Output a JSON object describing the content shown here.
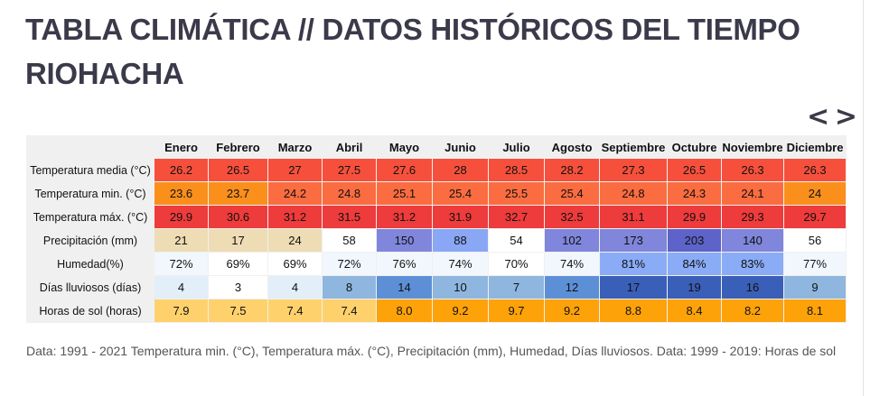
{
  "title_line1": "TABLA CLIMÁTICA // DATOS HISTÓRICOS DEL TIEMPO",
  "title_line2": "RIOHACHA",
  "nav": {
    "prev": "<",
    "next": ">"
  },
  "table": {
    "months": [
      "Enero",
      "Febrero",
      "Marzo",
      "Abril",
      "Mayo",
      "Junio",
      "Julio",
      "Agosto",
      "Septiembre",
      "Octubre",
      "Noviembre",
      "Diciembre"
    ],
    "rows": [
      {
        "label": "Temperatura media (°C)",
        "values": [
          "26.2",
          "26.5",
          "27",
          "27.5",
          "27.6",
          "28",
          "28.5",
          "28.2",
          "27.3",
          "26.5",
          "26.3",
          "26.3"
        ],
        "colors": [
          "#f6503c",
          "#f6503c",
          "#f6503c",
          "#f6503c",
          "#f6503c",
          "#f6503c",
          "#f6503c",
          "#f6503c",
          "#f6503c",
          "#f6503c",
          "#f6503c",
          "#f6503c"
        ]
      },
      {
        "label": "Temperatura min. (°C)",
        "values": [
          "23.6",
          "23.7",
          "24.2",
          "24.8",
          "25.1",
          "25.4",
          "25.5",
          "25.4",
          "24.8",
          "24.3",
          "24.1",
          "24"
        ],
        "colors": [
          "#fb8f1c",
          "#fb8f1c",
          "#fb6c40",
          "#fb6c40",
          "#fb6c40",
          "#fb6c40",
          "#fb6c40",
          "#fb6c40",
          "#fb6c40",
          "#fb6c40",
          "#fb6c40",
          "#fb8f1c"
        ]
      },
      {
        "label": "Temperatura máx. (°C)",
        "values": [
          "29.9",
          "30.6",
          "31.2",
          "31.5",
          "31.2",
          "31.9",
          "32.7",
          "32.5",
          "31.1",
          "29.9",
          "29.3",
          "29.7"
        ],
        "colors": [
          "#ee3b3b",
          "#ee3b3b",
          "#ee3b3b",
          "#ee3b3b",
          "#ee3b3b",
          "#ee3b3b",
          "#ee3b3b",
          "#ee3b3b",
          "#ee3b3b",
          "#ee3b3b",
          "#ee3b3b",
          "#ee3b3b"
        ]
      },
      {
        "label": "Precipitación (mm)",
        "values": [
          "21",
          "17",
          "24",
          "58",
          "150",
          "88",
          "54",
          "102",
          "173",
          "203",
          "140",
          "56"
        ],
        "colors": [
          "#eedcb4",
          "#eedcb4",
          "#eedcb4",
          "#ffffff",
          "#7f86dc",
          "#8aa7f5",
          "#ffffff",
          "#7f86dc",
          "#7f86dc",
          "#5d63c8",
          "#7f86dc",
          "#ffffff"
        ]
      },
      {
        "label": "Humedad(%)",
        "values": [
          "72%",
          "69%",
          "69%",
          "72%",
          "76%",
          "74%",
          "70%",
          "74%",
          "81%",
          "84%",
          "83%",
          "77%"
        ],
        "colors": [
          "#f2f7fd",
          "#ffffff",
          "#ffffff",
          "#f2f7fd",
          "#f2f7fd",
          "#f2f7fd",
          "#ffffff",
          "#f2f7fd",
          "#8aacf7",
          "#8aacf7",
          "#8aacf7",
          "#f2f7fd"
        ]
      },
      {
        "label": "Días lluviosos (días)",
        "values": [
          "4",
          "3",
          "4",
          "8",
          "14",
          "10",
          "7",
          "12",
          "17",
          "19",
          "16",
          "9"
        ],
        "colors": [
          "#e2eef8",
          "#ffffff",
          "#e2eef8",
          "#8eb6df",
          "#5d8fd6",
          "#8eb6df",
          "#8eb6df",
          "#5d8fd6",
          "#3a5fb8",
          "#3a5fb8",
          "#3a5fb8",
          "#8eb6df"
        ]
      },
      {
        "label": "Horas de sol (horas)",
        "values": [
          "7.9",
          "7.5",
          "7.4",
          "7.4",
          "8.0",
          "9.2",
          "9.7",
          "9.2",
          "8.8",
          "8.4",
          "8.2",
          "8.1"
        ],
        "colors": [
          "#fed16c",
          "#fed16c",
          "#fed16c",
          "#fed16c",
          "#fea20a",
          "#fea20a",
          "#fea20a",
          "#fea20a",
          "#fea20a",
          "#fea20a",
          "#fea20a",
          "#fea20a"
        ]
      }
    ]
  },
  "footnote": "Data: 1991 - 2021 Temperatura min. (°C), Temperatura máx. (°C), Precipitación (mm), Humedad, Días lluviosos. Data: 1999 - 2019: Horas de sol"
}
